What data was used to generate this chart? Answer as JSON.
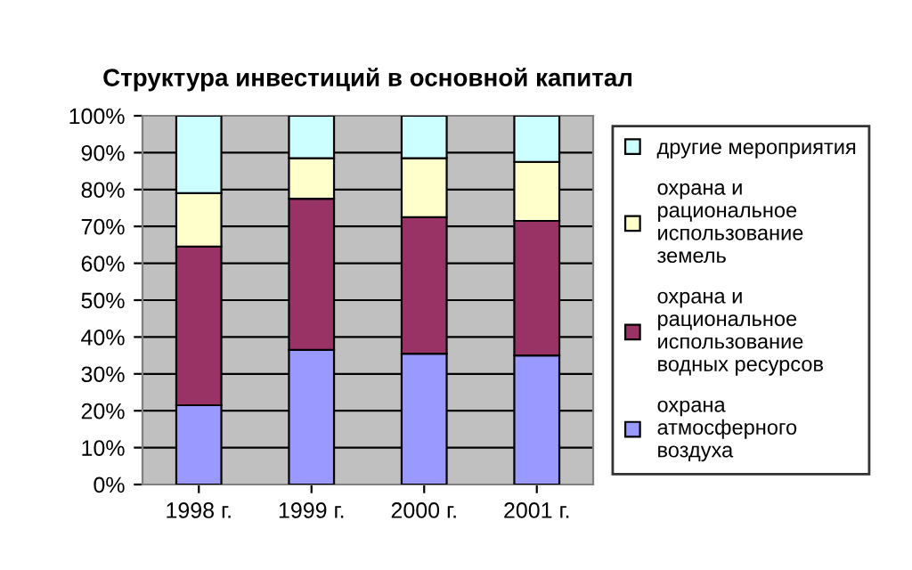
{
  "chart_data": {
    "type": "bar",
    "title": "Структура инвестиций в основной капитал",
    "categories": [
      "1998 г.",
      "1999 г.",
      "2000 г.",
      "2001 г."
    ],
    "stacked": true,
    "series": [
      {
        "name": "охрана атмосферного воздуха",
        "color": "#9999ff",
        "values": [
          21.5,
          36.5,
          35.5,
          35
        ]
      },
      {
        "name": "охрана и рациональное использование водных ресурсов",
        "color": "#993366",
        "values": [
          43,
          41,
          37,
          36.5
        ]
      },
      {
        "name": "охрана и рациональное использование земель",
        "color": "#ffffcc",
        "values": [
          14.5,
          11,
          16,
          16
        ]
      },
      {
        "name": "другие мероприятия",
        "color": "#ccffff",
        "values": [
          21,
          11.5,
          11.5,
          12.5
        ]
      }
    ],
    "ylim": [
      0,
      100
    ],
    "yticks": [
      {
        "value": 0,
        "label": "0%"
      },
      {
        "value": 10,
        "label": "10%"
      },
      {
        "value": 20,
        "label": "20%"
      },
      {
        "value": 30,
        "label": "30%"
      },
      {
        "value": 40,
        "label": "40%"
      },
      {
        "value": 50,
        "label": "50%"
      },
      {
        "value": 60,
        "label": "60%"
      },
      {
        "value": 70,
        "label": "70%"
      },
      {
        "value": 80,
        "label": "80%"
      },
      {
        "value": 90,
        "label": "90%"
      },
      {
        "value": 100,
        "label": "100%"
      }
    ],
    "grid": "y",
    "legend": "right"
  }
}
